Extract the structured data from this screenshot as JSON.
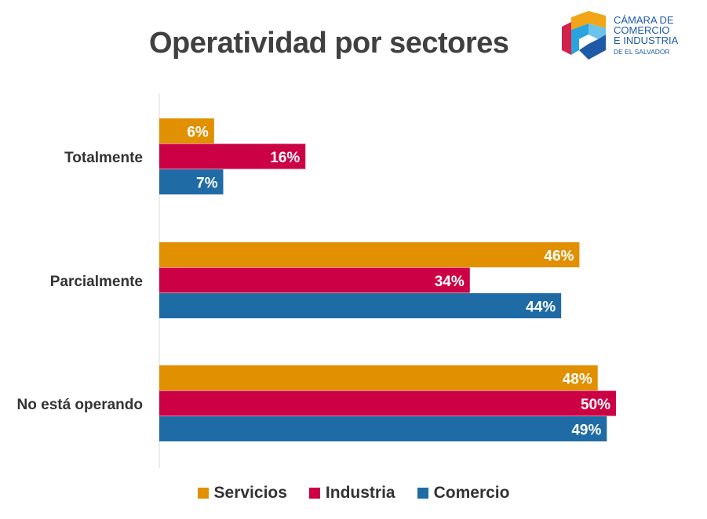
{
  "title": "Operatividad por sectores",
  "logo": {
    "lines": [
      "CÁMARA DE",
      "COMERCIO",
      "E INDUSTRIA",
      "DE EL SALVADOR"
    ]
  },
  "chart_data": {
    "type": "bar",
    "orientation": "horizontal",
    "title": "Operatividad por sectores",
    "categories": [
      "Totalmente",
      "Parcialmente",
      "No está operando"
    ],
    "series": [
      {
        "name": "Servicios",
        "color": "#E09000",
        "values": [
          6,
          46,
          48
        ]
      },
      {
        "name": "Industria",
        "color": "#CC0044",
        "values": [
          16,
          34,
          50
        ]
      },
      {
        "name": "Comercio",
        "color": "#1F6BA5",
        "values": [
          7,
          44,
          49
        ]
      }
    ],
    "value_suffix": "%",
    "xlim": [
      0,
      50
    ],
    "grid": false,
    "legend_position": "bottom"
  }
}
